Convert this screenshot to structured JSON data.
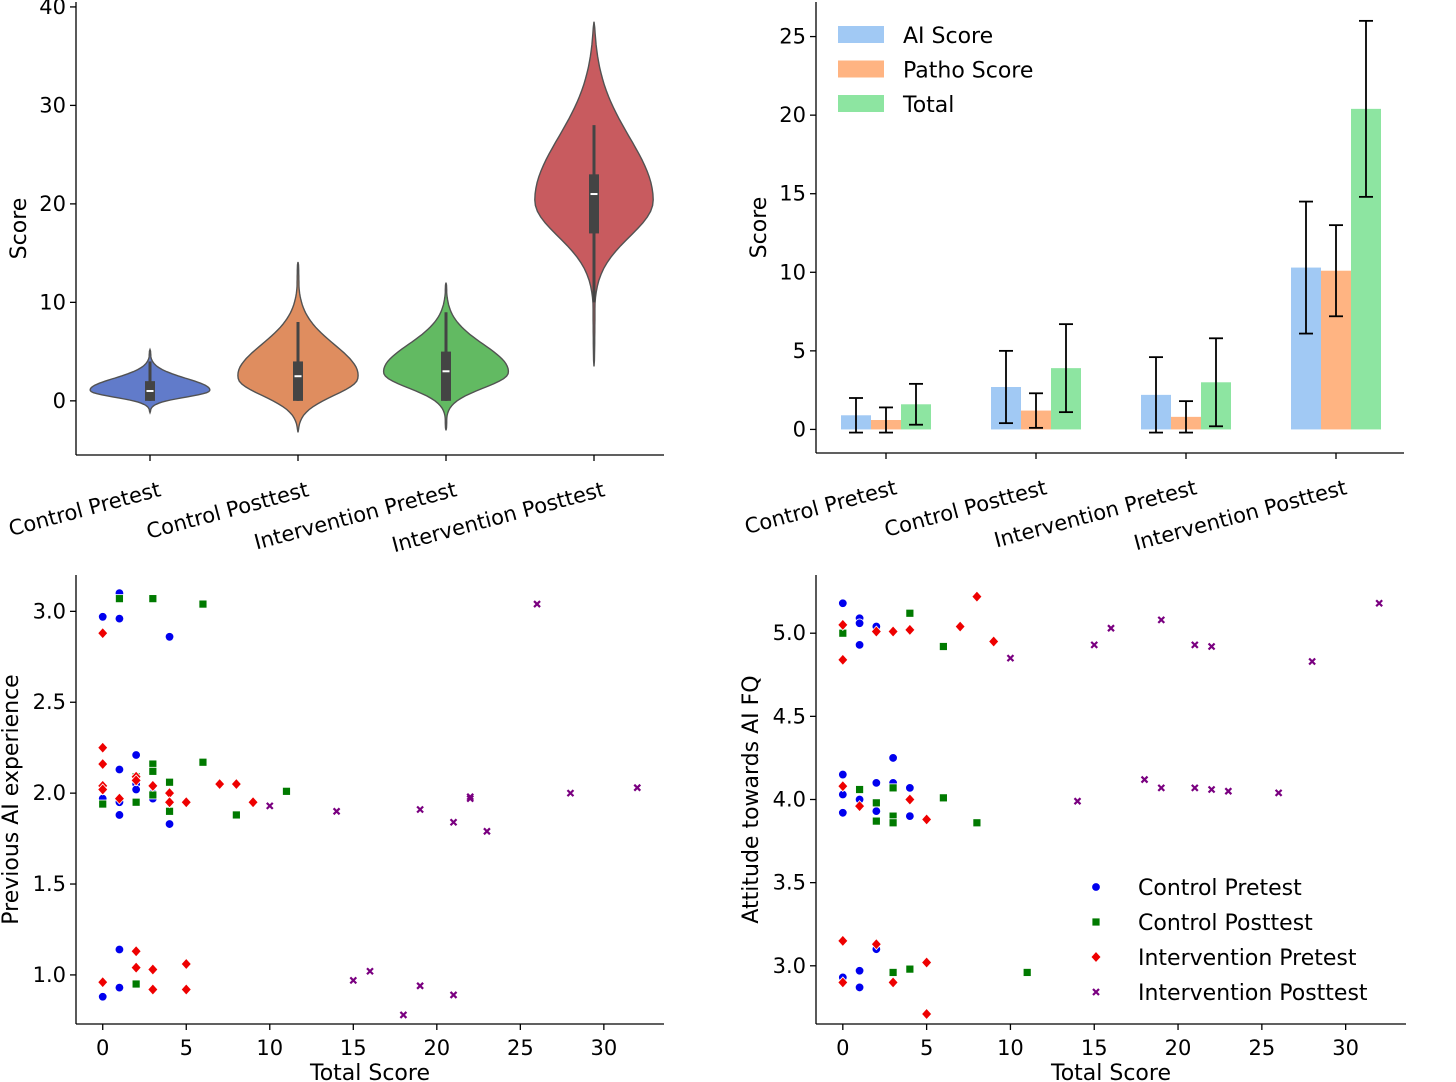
{
  "chart_data": [
    {
      "type": "violin",
      "ylabel": "Score",
      "ylim": [
        -5.5,
        40.5
      ],
      "yticks": [
        "0",
        "10",
        "20",
        "30",
        "40"
      ],
      "yticks_values": [
        0,
        10,
        20,
        30,
        40
      ],
      "categories": [
        "Control Pretest",
        "Control Posttest",
        "Intervention Pretest",
        "Intervention Posttest"
      ],
      "colors": [
        "#5470c6",
        "#dd8452",
        "#55b555",
        "#c44e52"
      ],
      "violins": [
        {
          "min": 0,
          "q1": 0,
          "median": 1,
          "q3": 2,
          "max": 4,
          "kde_min": -1.2,
          "kde_max": 5.2,
          "peak": 1.0,
          "width": 0.42
        },
        {
          "min": 0,
          "q1": 0,
          "median": 2.5,
          "q3": 4,
          "max": 8,
          "kde_min": -3.2,
          "kde_max": 14.1,
          "peak": 2.2,
          "width": 0.43
        },
        {
          "min": 0,
          "q1": 0,
          "median": 3,
          "q3": 5,
          "max": 9,
          "kde_min": -3.0,
          "kde_max": 12.0,
          "peak": 2.8,
          "width": 0.43
        },
        {
          "min": 10,
          "q1": 17,
          "median": 21,
          "q3": 23,
          "max": 28,
          "kde_min": 3.5,
          "kde_max": 38.5,
          "peak": 20.3,
          "width": 0.4
        }
      ]
    },
    {
      "type": "bar",
      "ylabel": "Score",
      "ylim": [
        -1.5,
        27.2
      ],
      "yticks": [
        "0",
        "5",
        "10",
        "15",
        "20",
        "25"
      ],
      "yticks_values": [
        0,
        5,
        10,
        15,
        20,
        25
      ],
      "categories": [
        "Control Pretest",
        "Control Posttest",
        "Intervention Pretest",
        "Intervention Posttest"
      ],
      "legend_position": "top-left",
      "series": [
        {
          "name": "AI Score",
          "color": "#a1c9f4",
          "values": [
            0.9,
            2.7,
            2.2,
            10.3
          ],
          "errors": [
            1.1,
            2.3,
            2.4,
            4.2
          ]
        },
        {
          "name": "Patho Score",
          "color": "#ffb482",
          "values": [
            0.6,
            1.2,
            0.8,
            10.1
          ],
          "errors": [
            0.8,
            1.1,
            1.0,
            2.9
          ]
        },
        {
          "name": "Total",
          "color": "#8de5a1",
          "values": [
            1.6,
            3.9,
            3.0,
            20.4
          ],
          "errors": [
            1.3,
            2.8,
            2.8,
            5.6
          ]
        }
      ]
    },
    {
      "type": "scatter",
      "xlabel": "Total Score",
      "ylabel": "Previous AI experience",
      "xlim": [
        -1.6,
        33.6
      ],
      "ylim": [
        0.73,
        3.2
      ],
      "xticks": [
        "0",
        "5",
        "10",
        "15",
        "20",
        "25",
        "30"
      ],
      "xticks_values": [
        0,
        5,
        10,
        15,
        20,
        25,
        30
      ],
      "yticks": [
        "1.0",
        "1.5",
        "2.0",
        "2.5",
        "3.0"
      ],
      "yticks_values": [
        1.0,
        1.5,
        2.0,
        2.5,
        3.0
      ],
      "series": [
        {
          "name": "Control Pretest",
          "color": "#0000ee",
          "marker": "circle",
          "points": [
            [
              0,
              2.97
            ],
            [
              1,
              3.1
            ],
            [
              1,
              2.96
            ],
            [
              4,
              2.86
            ],
            [
              0,
              1.97
            ],
            [
              0,
              2.02
            ],
            [
              1,
              2.13
            ],
            [
              1,
              1.95
            ],
            [
              1,
              1.88
            ],
            [
              2,
              2.21
            ],
            [
              2,
              2.05
            ],
            [
              2,
              2.02
            ],
            [
              3,
              2.0
            ],
            [
              3,
              1.97
            ],
            [
              4,
              1.83
            ],
            [
              0,
              0.88
            ],
            [
              1,
              1.14
            ],
            [
              1,
              0.93
            ]
          ]
        },
        {
          "name": "Control Posttest",
          "color": "#007a00",
          "marker": "square",
          "points": [
            [
              1,
              3.07
            ],
            [
              3,
              3.07
            ],
            [
              6,
              3.04
            ],
            [
              0,
              1.94
            ],
            [
              2,
              2.09
            ],
            [
              2,
              1.95
            ],
            [
              3,
              2.16
            ],
            [
              3,
              2.12
            ],
            [
              3,
              1.99
            ],
            [
              4,
              2.06
            ],
            [
              4,
              1.9
            ],
            [
              6,
              2.17
            ],
            [
              8,
              1.88
            ],
            [
              11,
              2.01
            ],
            [
              2,
              0.95
            ]
          ]
        },
        {
          "name": "Intervention Pretest",
          "color": "#ee0000",
          "marker": "diamond",
          "points": [
            [
              0,
              2.88
            ],
            [
              0,
              2.25
            ],
            [
              0,
              2.16
            ],
            [
              0,
              2.04
            ],
            [
              0,
              2.02
            ],
            [
              1,
              1.97
            ],
            [
              2,
              2.09
            ],
            [
              2,
              2.07
            ],
            [
              3,
              2.04
            ],
            [
              4,
              2.0
            ],
            [
              4,
              1.95
            ],
            [
              5,
              1.95
            ],
            [
              7,
              2.05
            ],
            [
              8,
              2.05
            ],
            [
              9,
              1.95
            ],
            [
              0,
              0.96
            ],
            [
              2,
              1.13
            ],
            [
              2,
              1.04
            ],
            [
              3,
              1.03
            ],
            [
              3,
              0.92
            ],
            [
              5,
              1.06
            ],
            [
              5,
              0.92
            ]
          ]
        },
        {
          "name": "Intervention Posttest",
          "color": "#7a0080",
          "marker": "x",
          "points": [
            [
              10,
              1.93
            ],
            [
              14,
              1.9
            ],
            [
              19,
              1.91
            ],
            [
              21,
              1.84
            ],
            [
              22,
              1.98
            ],
            [
              22,
              1.97
            ],
            [
              23,
              1.79
            ],
            [
              26,
              3.04
            ],
            [
              28,
              2.0
            ],
            [
              32,
              2.03
            ],
            [
              15,
              0.97
            ],
            [
              16,
              1.02
            ],
            [
              18,
              0.78
            ],
            [
              19,
              0.94
            ],
            [
              21,
              0.89
            ]
          ]
        }
      ]
    },
    {
      "type": "scatter",
      "xlabel": "Total Score",
      "ylabel": "Attitude towards AI FQ",
      "xlim": [
        -1.6,
        33.6
      ],
      "ylim": [
        2.65,
        5.35
      ],
      "xticks": [
        "0",
        "5",
        "10",
        "15",
        "20",
        "25",
        "30"
      ],
      "xticks_values": [
        0,
        5,
        10,
        15,
        20,
        25,
        30
      ],
      "yticks": [
        "3.0",
        "3.5",
        "4.0",
        "4.5",
        "5.0"
      ],
      "yticks_values": [
        3.0,
        3.5,
        4.0,
        4.5,
        5.0
      ],
      "legend_position": "lower-right",
      "series": [
        {
          "name": "Control Pretest",
          "color": "#0000ee",
          "marker": "circle",
          "points": [
            [
              0,
              5.18
            ],
            [
              1,
              5.09
            ],
            [
              1,
              5.06
            ],
            [
              1,
              4.93
            ],
            [
              2,
              5.04
            ],
            [
              0,
              4.15
            ],
            [
              0,
              4.03
            ],
            [
              0,
              3.92
            ],
            [
              1,
              4.0
            ],
            [
              2,
              4.1
            ],
            [
              2,
              3.93
            ],
            [
              3,
              4.25
            ],
            [
              3,
              4.1
            ],
            [
              4,
              4.07
            ],
            [
              4,
              3.9
            ],
            [
              0,
              2.93
            ],
            [
              1,
              2.97
            ],
            [
              1,
              2.87
            ],
            [
              2,
              3.1
            ]
          ]
        },
        {
          "name": "Control Posttest",
          "color": "#007a00",
          "marker": "square",
          "points": [
            [
              0,
              5.0
            ],
            [
              4,
              5.12
            ],
            [
              6,
              4.92
            ],
            [
              1,
              4.06
            ],
            [
              2,
              3.98
            ],
            [
              2,
              3.87
            ],
            [
              3,
              4.07
            ],
            [
              3,
              3.9
            ],
            [
              3,
              3.86
            ],
            [
              6,
              4.01
            ],
            [
              8,
              3.86
            ],
            [
              11,
              2.96
            ],
            [
              3,
              2.96
            ],
            [
              4,
              2.98
            ]
          ]
        },
        {
          "name": "Intervention Pretest",
          "color": "#ee0000",
          "marker": "diamond",
          "points": [
            [
              0,
              5.05
            ],
            [
              0,
              4.84
            ],
            [
              2,
              5.01
            ],
            [
              3,
              5.01
            ],
            [
              4,
              5.02
            ],
            [
              7,
              5.04
            ],
            [
              8,
              5.22
            ],
            [
              9,
              4.95
            ],
            [
              0,
              4.08
            ],
            [
              1,
              3.96
            ],
            [
              4,
              4.0
            ],
            [
              5,
              3.88
            ],
            [
              0,
              3.15
            ],
            [
              2,
              3.13
            ],
            [
              0,
              2.9
            ],
            [
              3,
              2.9
            ],
            [
              5,
              3.02
            ],
            [
              5,
              2.71
            ]
          ]
        },
        {
          "name": "Intervention Posttest",
          "color": "#7a0080",
          "marker": "x",
          "points": [
            [
              10,
              4.85
            ],
            [
              15,
              4.93
            ],
            [
              16,
              5.03
            ],
            [
              19,
              5.08
            ],
            [
              21,
              4.93
            ],
            [
              22,
              4.92
            ],
            [
              28,
              4.83
            ],
            [
              32,
              5.18
            ],
            [
              14,
              3.99
            ],
            [
              18,
              4.12
            ],
            [
              19,
              4.07
            ],
            [
              21,
              4.07
            ],
            [
              22,
              4.06
            ],
            [
              23,
              4.05
            ],
            [
              26,
              4.04
            ]
          ]
        }
      ]
    }
  ]
}
